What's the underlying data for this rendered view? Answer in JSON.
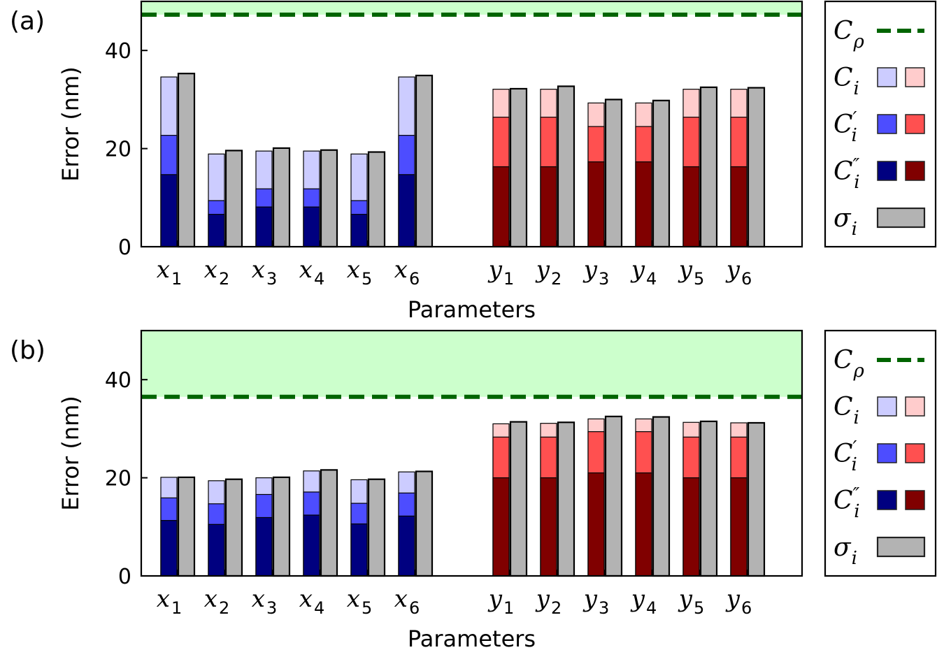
{
  "colors": {
    "x_light": "#ccccff",
    "x_mid": "#4d4dff",
    "x_dark": "#000080",
    "y_light": "#ffcccc",
    "y_mid": "#ff5050",
    "y_dark": "#800000",
    "sigma": "#b3b3b3",
    "region": "#ccffcc",
    "threshold": "#006400"
  },
  "chart_data": [
    {
      "type": "bar",
      "panel_label": "(a)",
      "xlabel": "Parameters",
      "ylabel": "Error (nm)",
      "ylim": [
        0,
        50
      ],
      "yticks": [
        "0",
        "20",
        "40"
      ],
      "categories": [
        {
          "base": "x",
          "sub": "1"
        },
        {
          "base": "x",
          "sub": "2"
        },
        {
          "base": "x",
          "sub": "3"
        },
        {
          "base": "x",
          "sub": "4"
        },
        {
          "base": "x",
          "sub": "5"
        },
        {
          "base": "x",
          "sub": "6"
        },
        {
          "base": "y",
          "sub": "1"
        },
        {
          "base": "y",
          "sub": "2"
        },
        {
          "base": "y",
          "sub": "3"
        },
        {
          "base": "y",
          "sub": "4"
        },
        {
          "base": "y",
          "sub": "5"
        },
        {
          "base": "y",
          "sub": "6"
        }
      ],
      "threshold": 47.3,
      "series": [
        {
          "name": "C_i''",
          "values": [
            14.7,
            6.6,
            8.1,
            8.1,
            6.6,
            14.7,
            16.3,
            16.3,
            17.3,
            17.3,
            16.3,
            16.3
          ]
        },
        {
          "name": "C_i'",
          "values": [
            22.7,
            9.4,
            11.8,
            11.8,
            9.4,
            22.7,
            26.4,
            26.4,
            24.5,
            24.5,
            26.4,
            26.4
          ]
        },
        {
          "name": "C_i",
          "values": [
            34.6,
            18.9,
            19.5,
            19.5,
            18.9,
            34.6,
            32.1,
            32.1,
            29.3,
            29.3,
            32.1,
            32.1
          ]
        },
        {
          "name": "sigma_i",
          "values": [
            35.3,
            19.6,
            20.1,
            19.7,
            19.3,
            34.9,
            32.2,
            32.7,
            30.0,
            29.8,
            32.5,
            32.4
          ]
        }
      ]
    },
    {
      "type": "bar",
      "panel_label": "(b)",
      "xlabel": "Parameters",
      "ylabel": "Error (nm)",
      "ylim": [
        0,
        50
      ],
      "yticks": [
        "0",
        "20",
        "40"
      ],
      "categories": [
        {
          "base": "x",
          "sub": "1"
        },
        {
          "base": "x",
          "sub": "2"
        },
        {
          "base": "x",
          "sub": "3"
        },
        {
          "base": "x",
          "sub": "4"
        },
        {
          "base": "x",
          "sub": "5"
        },
        {
          "base": "x",
          "sub": "6"
        },
        {
          "base": "y",
          "sub": "1"
        },
        {
          "base": "y",
          "sub": "2"
        },
        {
          "base": "y",
          "sub": "3"
        },
        {
          "base": "y",
          "sub": "4"
        },
        {
          "base": "y",
          "sub": "5"
        },
        {
          "base": "y",
          "sub": "6"
        }
      ],
      "threshold": 36.5,
      "series": [
        {
          "name": "C_i''",
          "values": [
            11.3,
            10.5,
            11.9,
            12.4,
            10.6,
            12.2,
            20.0,
            20.0,
            21.0,
            21.0,
            20.0,
            20.0
          ]
        },
        {
          "name": "C_i'",
          "values": [
            15.9,
            14.7,
            16.6,
            17.1,
            14.8,
            16.9,
            28.3,
            28.3,
            29.4,
            29.4,
            28.3,
            28.3
          ]
        },
        {
          "name": "C_i",
          "values": [
            20.1,
            19.4,
            20.0,
            21.4,
            19.6,
            21.2,
            31.0,
            31.1,
            32.0,
            32.0,
            31.3,
            31.2
          ]
        },
        {
          "name": "sigma_i",
          "values": [
            20.1,
            19.7,
            20.1,
            21.6,
            19.7,
            21.3,
            31.4,
            31.3,
            32.5,
            32.4,
            31.5,
            31.2
          ]
        }
      ]
    }
  ],
  "legend": {
    "items": [
      {
        "key": "C_rho",
        "letter": "C",
        "sub": "ρ",
        "prime": "",
        "kind": "line"
      },
      {
        "key": "C_i",
        "letter": "C",
        "sub": "i",
        "prime": "",
        "kind": "pair",
        "colors": [
          "x_light",
          "y_light"
        ]
      },
      {
        "key": "C_i_prime",
        "letter": "C",
        "sub": "i",
        "prime": "′",
        "kind": "pair",
        "colors": [
          "x_mid",
          "y_mid"
        ]
      },
      {
        "key": "C_i_dprime",
        "letter": "C",
        "sub": "i",
        "prime": "″",
        "kind": "pair",
        "colors": [
          "x_dark",
          "y_dark"
        ]
      },
      {
        "key": "sigma_i",
        "letter": "σ",
        "sub": "i",
        "prime": "",
        "kind": "single",
        "colors": [
          "sigma"
        ]
      }
    ]
  }
}
